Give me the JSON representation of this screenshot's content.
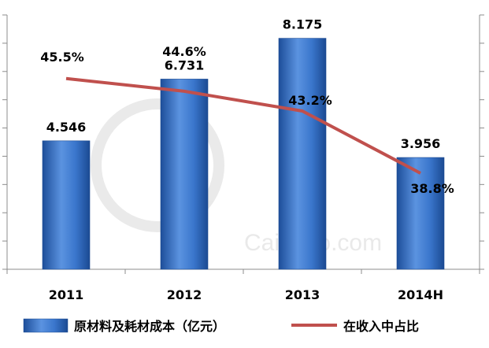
{
  "chart_data": {
    "type": "bar",
    "categories": [
      "2011",
      "2012",
      "2013",
      "2014H"
    ],
    "series": [
      {
        "name": "原材料及耗材成本（亿元）",
        "type": "bar",
        "axis": "left",
        "values": [
          4.546,
          6.731,
          8.175,
          3.956
        ],
        "labels": [
          "4.546",
          "6.731",
          "8.175",
          "3.956"
        ],
        "color": "#2f6fc7"
      },
      {
        "name": "在收入中占比",
        "type": "line",
        "axis": "right",
        "values": [
          45.5,
          44.6,
          43.2,
          38.8
        ],
        "labels": [
          "45.5%",
          "44.6%",
          "43.2%",
          "38.8%"
        ],
        "color": "#c0504d"
      }
    ],
    "title": "",
    "xlabel": "",
    "ylabel": "",
    "ylim": [
      0,
      9
    ],
    "y2lim": [
      32,
      50
    ],
    "grid": false,
    "legend_position": "bottom",
    "watermark": "Caishuo.com"
  }
}
